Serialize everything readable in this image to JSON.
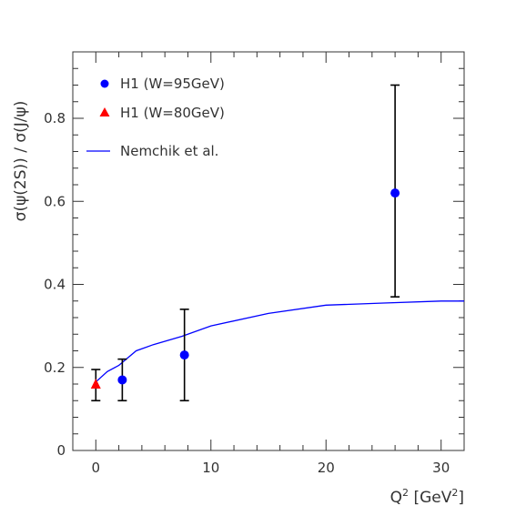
{
  "chart_data": {
    "type": "scatter",
    "xlabel": "Q",
    "xlabel_sup": "2",
    "xlabel_unit_open": " [GeV",
    "xlabel_unit_sup": "2",
    "xlabel_unit_close": "]",
    "ylabel": "σ(ψ(2S)) / σ(J/ψ)",
    "xlim": [
      -2,
      32
    ],
    "ylim": [
      0,
      0.96
    ],
    "x_ticks": [
      0,
      10,
      20,
      30
    ],
    "x_tick_labels": [
      "0",
      "10",
      "20",
      "30"
    ],
    "y_ticks": [
      0,
      0.2,
      0.4,
      0.6,
      0.8
    ],
    "y_tick_labels": [
      "0",
      "0.2",
      "0.4",
      "0.6",
      "0.8"
    ],
    "grid": false,
    "legend_position": "top-left",
    "series": [
      {
        "name": "H1 (W=95GeV)",
        "marker": "circle",
        "color": "#0000ff",
        "points": [
          {
            "x": 2.3,
            "y": 0.17,
            "y_low": 0.12,
            "y_high": 0.22
          },
          {
            "x": 7.7,
            "y": 0.23,
            "y_low": 0.12,
            "y_high": 0.34
          },
          {
            "x": 26.0,
            "y": 0.62,
            "y_low": 0.37,
            "y_high": 0.88
          }
        ]
      },
      {
        "name": "H1 (W=80GeV)",
        "marker": "triangle",
        "color": "#ff0000",
        "points": [
          {
            "x": 0.0,
            "y": 0.16,
            "y_low": 0.12,
            "y_high": 0.195
          }
        ]
      },
      {
        "name": "Nemchik et al.",
        "marker": "line",
        "color": "#0000ff",
        "points": [
          {
            "x": 0.0,
            "y": 0.165
          },
          {
            "x": 1.0,
            "y": 0.19
          },
          {
            "x": 2.0,
            "y": 0.205
          },
          {
            "x": 3.5,
            "y": 0.24
          },
          {
            "x": 5.0,
            "y": 0.255
          },
          {
            "x": 7.5,
            "y": 0.275
          },
          {
            "x": 10.0,
            "y": 0.3
          },
          {
            "x": 15.0,
            "y": 0.33
          },
          {
            "x": 20.0,
            "y": 0.35
          },
          {
            "x": 25.0,
            "y": 0.355
          },
          {
            "x": 30.0,
            "y": 0.36
          },
          {
            "x": 32.0,
            "y": 0.36
          }
        ]
      }
    ]
  },
  "colors": {
    "axis": "#333333",
    "error_bar": "#000000"
  }
}
